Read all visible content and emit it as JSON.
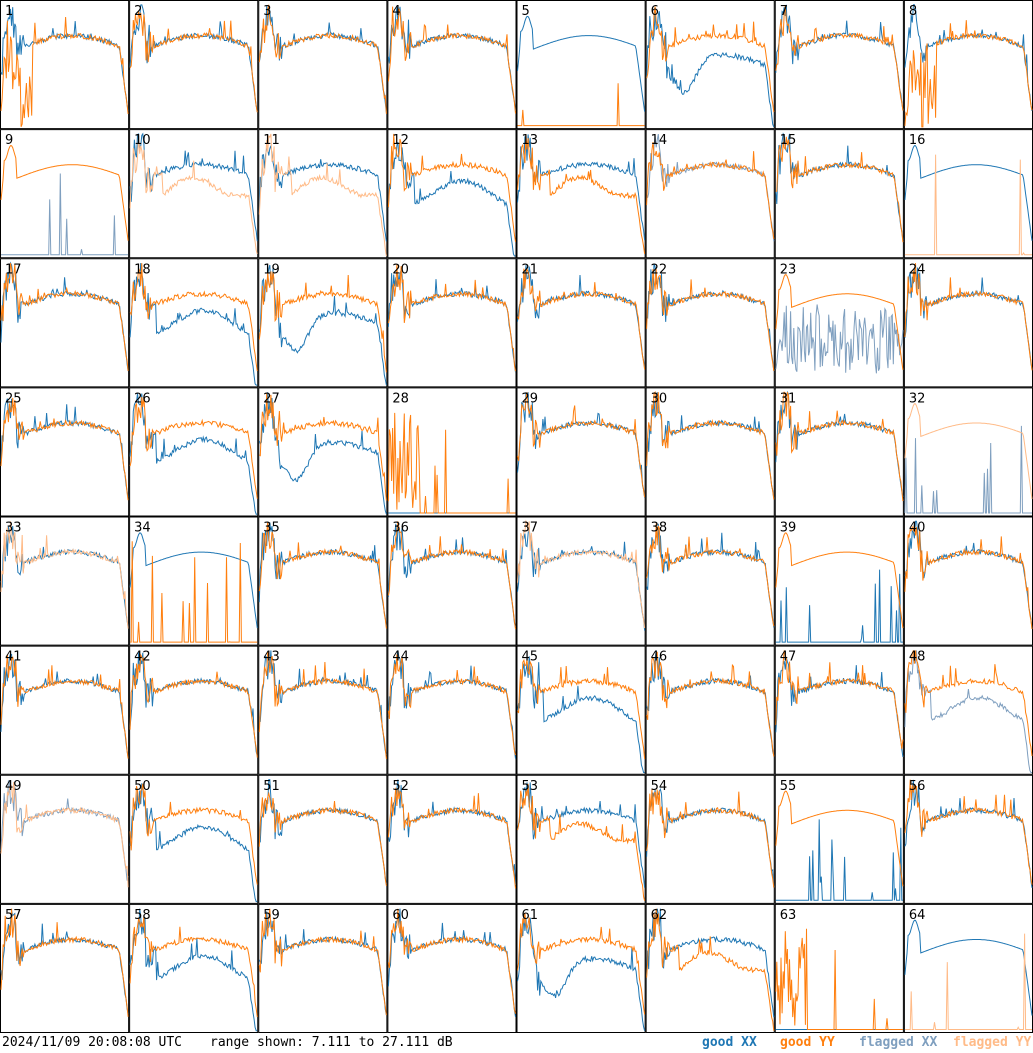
{
  "footer": {
    "timestamp": "2024/11/09 20:08:08 UTC",
    "range_text": "range shown: 7.111 to 27.111 dB",
    "legend": {
      "good_xx": "good XX",
      "good_yy": "good YY",
      "flagged_xx": "flagged XX",
      "flagged_yy": "flagged YY"
    }
  },
  "colors": {
    "good_xx": "#1f77b4",
    "good_yy": "#ff7f0e",
    "flagged_xx": "#7f9fbf",
    "flagged_yy": "#ffbb88"
  },
  "chart_data": {
    "type": "line",
    "ylim": [
      7.111,
      27.111
    ],
    "ylabel_unit": "dB",
    "grid_rows": 8,
    "grid_cols": 8,
    "panels": [
      {
        "label": "1",
        "xx": "good",
        "yy": "good",
        "shape": "noisy_left"
      },
      {
        "label": "2",
        "xx": "good",
        "yy": "good",
        "shape": "normal"
      },
      {
        "label": "3",
        "xx": "good",
        "yy": "good",
        "shape": "normal"
      },
      {
        "label": "4",
        "xx": "good",
        "yy": "good",
        "shape": "normal"
      },
      {
        "label": "5",
        "xx": "good",
        "yy": "good",
        "shape": "yy_low"
      },
      {
        "label": "6",
        "xx": "good",
        "yy": "good",
        "shape": "xx_dip"
      },
      {
        "label": "7",
        "xx": "good",
        "yy": "good",
        "shape": "normal"
      },
      {
        "label": "8",
        "xx": "good",
        "yy": "good",
        "shape": "noisy_left"
      },
      {
        "label": "9",
        "xx": "flagged",
        "yy": "good",
        "shape": "xx_low"
      },
      {
        "label": "10",
        "xx": "good",
        "yy": "flagged",
        "shape": "yy_sag"
      },
      {
        "label": "11",
        "xx": "good",
        "yy": "flagged",
        "shape": "yy_sag"
      },
      {
        "label": "12",
        "xx": "good",
        "yy": "good",
        "shape": "xx_sag"
      },
      {
        "label": "13",
        "xx": "good",
        "yy": "good",
        "shape": "yy_sag"
      },
      {
        "label": "14",
        "xx": "flagged",
        "yy": "good",
        "shape": "normal"
      },
      {
        "label": "15",
        "xx": "good",
        "yy": "good",
        "shape": "normal"
      },
      {
        "label": "16",
        "xx": "good",
        "yy": "flagged",
        "shape": "yy_low"
      },
      {
        "label": "17",
        "xx": "good",
        "yy": "good",
        "shape": "normal"
      },
      {
        "label": "18",
        "xx": "good",
        "yy": "good",
        "shape": "xx_sag"
      },
      {
        "label": "19",
        "xx": "good",
        "yy": "good",
        "shape": "xx_dip"
      },
      {
        "label": "20",
        "xx": "good",
        "yy": "good",
        "shape": "normal"
      },
      {
        "label": "21",
        "xx": "good",
        "yy": "good",
        "shape": "normal"
      },
      {
        "label": "22",
        "xx": "good",
        "yy": "good",
        "shape": "normal"
      },
      {
        "label": "23",
        "xx": "flagged",
        "yy": "good",
        "shape": "xx_noise"
      },
      {
        "label": "24",
        "xx": "good",
        "yy": "good",
        "shape": "normal"
      },
      {
        "label": "25",
        "xx": "good",
        "yy": "good",
        "shape": "normal"
      },
      {
        "label": "26",
        "xx": "good",
        "yy": "good",
        "shape": "xx_sag"
      },
      {
        "label": "27",
        "xx": "good",
        "yy": "good",
        "shape": "xx_dip"
      },
      {
        "label": "28",
        "xx": "good",
        "yy": "good",
        "shape": "both_low"
      },
      {
        "label": "29",
        "xx": "good",
        "yy": "good",
        "shape": "normal"
      },
      {
        "label": "30",
        "xx": "good",
        "yy": "good",
        "shape": "normal"
      },
      {
        "label": "31",
        "xx": "good",
        "yy": "good",
        "shape": "normal"
      },
      {
        "label": "32",
        "xx": "flagged",
        "yy": "flagged",
        "shape": "xx_low"
      },
      {
        "label": "33",
        "xx": "good",
        "yy": "flagged",
        "shape": "normal"
      },
      {
        "label": "34",
        "xx": "good",
        "yy": "good",
        "shape": "yy_low"
      },
      {
        "label": "35",
        "xx": "good",
        "yy": "good",
        "shape": "normal"
      },
      {
        "label": "36",
        "xx": "good",
        "yy": "good",
        "shape": "normal"
      },
      {
        "label": "37",
        "xx": "good",
        "yy": "flagged",
        "shape": "normal"
      },
      {
        "label": "38",
        "xx": "good",
        "yy": "good",
        "shape": "normal"
      },
      {
        "label": "39",
        "xx": "good",
        "yy": "good",
        "shape": "xx_low"
      },
      {
        "label": "40",
        "xx": "good",
        "yy": "good",
        "shape": "normal"
      },
      {
        "label": "41",
        "xx": "good",
        "yy": "good",
        "shape": "normal"
      },
      {
        "label": "42",
        "xx": "good",
        "yy": "good",
        "shape": "normal"
      },
      {
        "label": "43",
        "xx": "good",
        "yy": "good",
        "shape": "normal"
      },
      {
        "label": "44",
        "xx": "good",
        "yy": "good",
        "shape": "normal"
      },
      {
        "label": "45",
        "xx": "good",
        "yy": "good",
        "shape": "xx_sag"
      },
      {
        "label": "46",
        "xx": "good",
        "yy": "good",
        "shape": "normal"
      },
      {
        "label": "47",
        "xx": "good",
        "yy": "good",
        "shape": "normal"
      },
      {
        "label": "48",
        "xx": "flagged",
        "yy": "good",
        "shape": "xx_sag"
      },
      {
        "label": "49",
        "xx": "flagged",
        "yy": "flagged",
        "shape": "normal"
      },
      {
        "label": "50",
        "xx": "good",
        "yy": "good",
        "shape": "xx_sag"
      },
      {
        "label": "51",
        "xx": "good",
        "yy": "good",
        "shape": "normal"
      },
      {
        "label": "52",
        "xx": "good",
        "yy": "good",
        "shape": "normal"
      },
      {
        "label": "53",
        "xx": "good",
        "yy": "good",
        "shape": "yy_sag"
      },
      {
        "label": "54",
        "xx": "good",
        "yy": "good",
        "shape": "normal"
      },
      {
        "label": "55",
        "xx": "good",
        "yy": "good",
        "shape": "xx_low"
      },
      {
        "label": "56",
        "xx": "good",
        "yy": "good",
        "shape": "normal"
      },
      {
        "label": "57",
        "xx": "good",
        "yy": "good",
        "shape": "normal"
      },
      {
        "label": "58",
        "xx": "good",
        "yy": "good",
        "shape": "xx_sag"
      },
      {
        "label": "59",
        "xx": "good",
        "yy": "good",
        "shape": "normal"
      },
      {
        "label": "60",
        "xx": "good",
        "yy": "good",
        "shape": "normal"
      },
      {
        "label": "61",
        "xx": "good",
        "yy": "good",
        "shape": "xx_dip"
      },
      {
        "label": "62",
        "xx": "good",
        "yy": "good",
        "shape": "yy_sag"
      },
      {
        "label": "63",
        "xx": "good",
        "yy": "good",
        "shape": "both_low"
      },
      {
        "label": "64",
        "xx": "good",
        "yy": "flagged",
        "shape": "yy_low"
      }
    ]
  }
}
